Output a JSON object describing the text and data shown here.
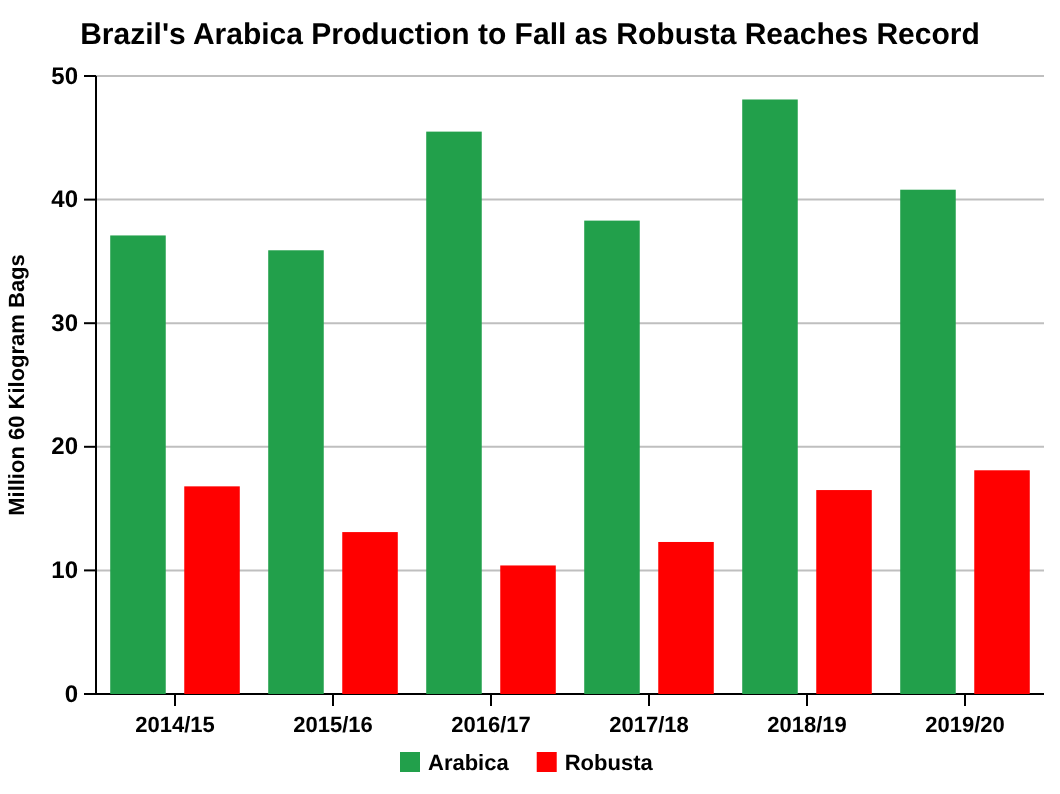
{
  "chart_data": {
    "type": "bar",
    "title": "Brazil's Arabica Production to Fall as Robusta Reaches Record",
    "ylabel": "Million 60 Kilogram Bags",
    "categories": [
      "2014/15",
      "2015/16",
      "2016/17",
      "2017/18",
      "2018/19",
      "2019/20"
    ],
    "series": [
      {
        "name": "Arabica",
        "color": "#22a04b",
        "values": [
          37.1,
          35.9,
          45.5,
          38.3,
          48.1,
          40.8
        ]
      },
      {
        "name": "Robusta",
        "color": "#ff0000",
        "values": [
          16.8,
          13.1,
          10.4,
          12.3,
          16.5,
          18.1
        ]
      }
    ],
    "ylim": [
      0,
      50
    ],
    "yticks": [
      0,
      10,
      20,
      30,
      40,
      50
    ],
    "grid": "y",
    "legend": "bottom"
  }
}
